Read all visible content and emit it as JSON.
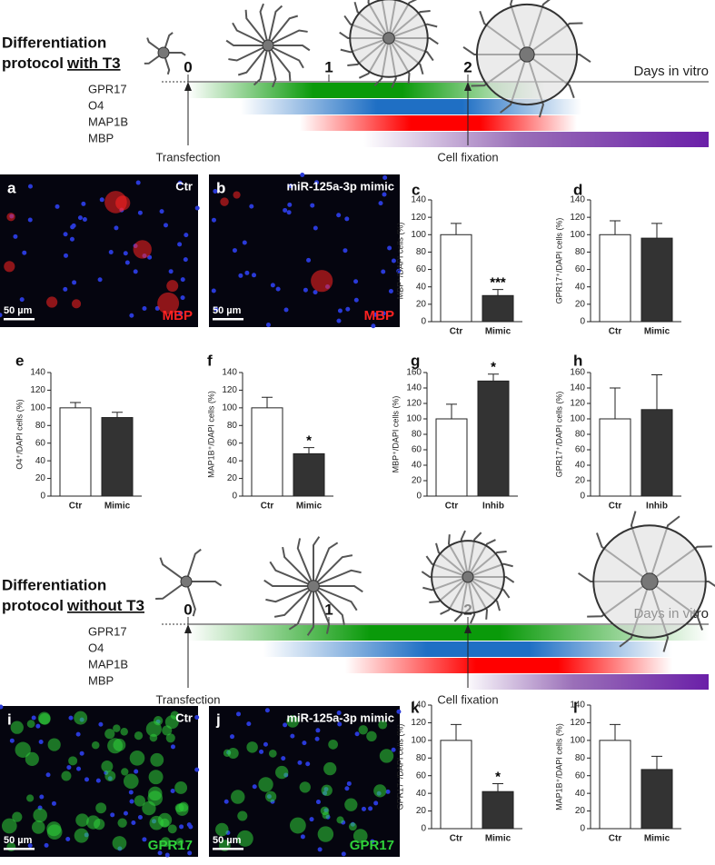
{
  "protocols": [
    {
      "title_line1": "Differentiation",
      "title_word": "protocol",
      "title_condition": "with T3",
      "days": [
        "0",
        "1",
        "2"
      ],
      "axis_label": "Days in vitro",
      "markers": [
        "GPR17",
        "O4",
        "MAP1B",
        "MBP"
      ],
      "events": [
        "Transfection",
        "Cell fixation"
      ]
    },
    {
      "title_line1": "Differentiation",
      "title_word": "protocol",
      "title_condition": "without T3",
      "days": [
        "0",
        "1",
        "2"
      ],
      "axis_label": "Days in vitro",
      "markers": [
        "GPR17",
        "O4",
        "MAP1B",
        "MBP"
      ],
      "events": [
        "Transfection",
        "Cell fixation"
      ]
    }
  ],
  "micrographs": [
    {
      "panel": "a",
      "label": "Ctr",
      "stain": "MBP",
      "scale": "50 µm"
    },
    {
      "panel": "b",
      "label": "miR-125a-3p  mimic",
      "stain": "MBP",
      "scale": "50 µm"
    },
    {
      "panel": "i",
      "label": "Ctr",
      "stain": "GPR17",
      "scale": "50 µm"
    },
    {
      "panel": "j",
      "label": "miR-125a-3p  mimic",
      "stain": "GPR17",
      "scale": "50 µm"
    }
  ],
  "chart_data": [
    {
      "type": "bar",
      "panel": "c",
      "y_label": "MBP⁺/DAPI cells (%)",
      "categories": [
        "Ctr",
        "Mimic"
      ],
      "values": [
        100,
        30
      ],
      "errors": [
        13,
        7
      ],
      "significance": [
        null,
        "***"
      ],
      "colors": [
        "#ffffff",
        "#333333"
      ],
      "ylim": [
        0,
        140
      ],
      "yticks": [
        0,
        20,
        40,
        60,
        80,
        100,
        120,
        140
      ]
    },
    {
      "type": "bar",
      "panel": "d",
      "y_label": "GPR17⁺/DAPI cells (%)",
      "categories": [
        "Ctr",
        "Mimic"
      ],
      "values": [
        100,
        96
      ],
      "errors": [
        16,
        17
      ],
      "significance": [
        null,
        null
      ],
      "colors": [
        "#ffffff",
        "#333333"
      ],
      "ylim": [
        0,
        140
      ],
      "yticks": [
        0,
        20,
        40,
        60,
        80,
        100,
        120,
        140
      ]
    },
    {
      "type": "bar",
      "panel": "e",
      "y_label": "O4⁺/DAPI cells (%)",
      "categories": [
        "Ctr",
        "Mimic"
      ],
      "values": [
        100,
        89
      ],
      "errors": [
        6,
        6
      ],
      "significance": [
        null,
        null
      ],
      "colors": [
        "#ffffff",
        "#333333"
      ],
      "ylim": [
        0,
        140
      ],
      "yticks": [
        0,
        20,
        40,
        60,
        80,
        100,
        120,
        140
      ]
    },
    {
      "type": "bar",
      "panel": "f",
      "y_label": "MAP1B⁺/DAPI cells (%)",
      "categories": [
        "Ctr",
        "Mimic"
      ],
      "values": [
        100,
        48
      ],
      "errors": [
        12,
        7
      ],
      "significance": [
        null,
        "*"
      ],
      "colors": [
        "#ffffff",
        "#333333"
      ],
      "ylim": [
        0,
        140
      ],
      "yticks": [
        0,
        20,
        40,
        60,
        80,
        100,
        120,
        140
      ]
    },
    {
      "type": "bar",
      "panel": "g",
      "y_label": "MBP⁺/DAPI cells (%)",
      "categories": [
        "Ctr",
        "Inhib"
      ],
      "values": [
        100,
        149
      ],
      "errors": [
        19,
        9
      ],
      "significance": [
        null,
        "*"
      ],
      "colors": [
        "#ffffff",
        "#333333"
      ],
      "ylim": [
        0,
        160
      ],
      "yticks": [
        0,
        20,
        40,
        60,
        80,
        100,
        120,
        140,
        160
      ]
    },
    {
      "type": "bar",
      "panel": "h",
      "y_label": "GPR17⁺/DAPI cells (%)",
      "categories": [
        "Ctr",
        "Inhib"
      ],
      "values": [
        100,
        112
      ],
      "errors": [
        40,
        45
      ],
      "significance": [
        null,
        null
      ],
      "colors": [
        "#ffffff",
        "#333333"
      ],
      "ylim": [
        0,
        160
      ],
      "yticks": [
        0,
        20,
        40,
        60,
        80,
        100,
        120,
        140,
        160
      ]
    },
    {
      "type": "bar",
      "panel": "k",
      "y_label": "GPR17⁺/DAPI cells (%)",
      "categories": [
        "Ctr",
        "Mimic"
      ],
      "values": [
        100,
        42
      ],
      "errors": [
        18,
        9
      ],
      "significance": [
        null,
        "*"
      ],
      "colors": [
        "#ffffff",
        "#333333"
      ],
      "ylim": [
        0,
        140
      ],
      "yticks": [
        0,
        20,
        40,
        60,
        80,
        100,
        120,
        140
      ]
    },
    {
      "type": "bar",
      "panel": "l",
      "y_label": "MAP1B⁺/DAPI cells (%)",
      "categories": [
        "Ctr",
        "Mimic"
      ],
      "values": [
        100,
        67
      ],
      "errors": [
        18,
        15
      ],
      "significance": [
        null,
        null
      ],
      "colors": [
        "#ffffff",
        "#333333"
      ],
      "ylim": [
        0,
        140
      ],
      "yticks": [
        0,
        20,
        40,
        60,
        80,
        100,
        120,
        140
      ]
    }
  ]
}
